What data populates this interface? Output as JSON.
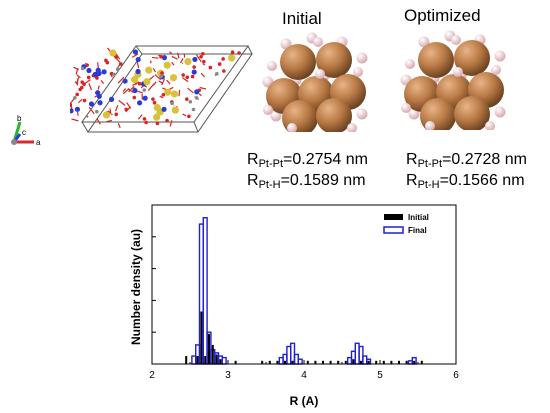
{
  "panels": {
    "initial": {
      "heading": "Initial",
      "r_pt_pt": {
        "symbol": "R",
        "subscript": "Pt-Pt",
        "value": "=0.2754 nm"
      },
      "r_pt_h": {
        "symbol": "R",
        "subscript": "Pt-H",
        "value": "=0.1589 nm"
      }
    },
    "optimized": {
      "heading": "Optimized",
      "r_pt_pt": {
        "symbol": "R",
        "subscript": "Pt-Pt",
        "value": "=0.2728 nm"
      },
      "r_pt_h": {
        "symbol": "R",
        "subscript": "Pt-H",
        "value": "=0.1566 nm"
      }
    }
  },
  "axes_icon": {
    "labels": [
      "b",
      "c",
      "a"
    ]
  },
  "colors": {
    "pt_atom": "#b97a45",
    "h_atom": "#f1d3d6",
    "initial_series": "#000000",
    "final_series": "#1f1fd6"
  },
  "chart_data": {
    "type": "bar",
    "xlabel": "R (A)",
    "ylabel": "Number density (au)",
    "xlim": [
      2,
      6
    ],
    "ylim": [
      0,
      1
    ],
    "xticks": [
      2,
      3,
      4,
      5,
      6
    ],
    "bin_width": 0.05,
    "legend_position": "top-right",
    "series": [
      {
        "name": "Initial",
        "style": "filled",
        "x": [
          2.45,
          2.6,
          2.65,
          2.7,
          2.75,
          2.8,
          2.85,
          2.9,
          3.1,
          3.45,
          3.55,
          3.65,
          3.75,
          3.85,
          4.05,
          4.15,
          4.25,
          4.35,
          4.45,
          4.55,
          4.65,
          4.75,
          4.85,
          4.95,
          5.05,
          5.15,
          5.25,
          5.35,
          5.45,
          5.55
        ],
        "y": [
          0.05,
          0.05,
          0.33,
          0.05,
          0.19,
          0.12,
          0.06,
          0.03,
          0.02,
          0.02,
          0.02,
          0.02,
          0.02,
          0.02,
          0.02,
          0.02,
          0.02,
          0.02,
          0.02,
          0.02,
          0.03,
          0.02,
          0.02,
          0.02,
          0.02,
          0.02,
          0.02,
          0.02,
          0.02,
          0.02
        ]
      },
      {
        "name": "Final",
        "style": "outline",
        "x": [
          2.55,
          2.6,
          2.65,
          2.7,
          2.75,
          2.8,
          2.85,
          2.9,
          2.95,
          3.7,
          3.75,
          3.8,
          3.85,
          3.9,
          3.95,
          4.6,
          4.65,
          4.7,
          4.75,
          4.8,
          4.85,
          5.4,
          5.45
        ],
        "y": [
          0.05,
          0.12,
          0.88,
          0.92,
          0.2,
          0.09,
          0.07,
          0.05,
          0.04,
          0.04,
          0.06,
          0.11,
          0.13,
          0.06,
          0.03,
          0.04,
          0.08,
          0.13,
          0.11,
          0.05,
          0.03,
          0.02,
          0.04
        ]
      }
    ]
  }
}
